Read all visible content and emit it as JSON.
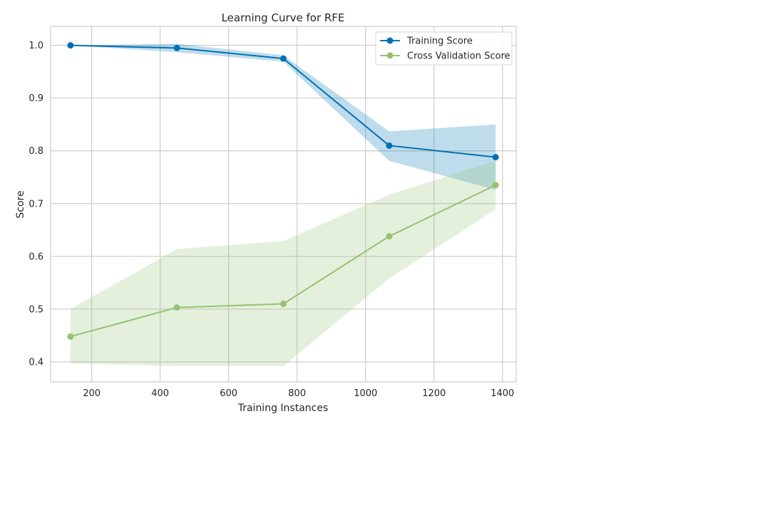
{
  "chart_data": {
    "type": "line",
    "title": "Learning Curve for RFE",
    "xlabel": "Training Instances",
    "ylabel": "Score",
    "xlim": [
      80,
      1440
    ],
    "ylim": [
      0.362,
      1.036
    ],
    "xticks": [
      200,
      400,
      600,
      800,
      1000,
      1200,
      1400
    ],
    "yticks": [
      0.4,
      0.5,
      0.6,
      0.7,
      0.8,
      0.9,
      1.0
    ],
    "xtick_labels": [
      "200",
      "400",
      "600",
      "800",
      "1000",
      "1200",
      "1400"
    ],
    "ytick_labels": [
      "0.4",
      "0.5",
      "0.6",
      "0.7",
      "0.8",
      "0.9",
      "1.0"
    ],
    "grid": true,
    "legend_position": "top-right",
    "x": [
      138,
      449,
      760,
      1069,
      1380
    ],
    "series": [
      {
        "name": "Training Score",
        "color": "#0072b2",
        "band_color": "#0072b2",
        "values": [
          1.0,
          0.995,
          0.975,
          0.81,
          0.788
        ],
        "lower": [
          1.0,
          0.987,
          0.969,
          0.781,
          0.726
        ],
        "upper": [
          1.0,
          1.003,
          0.981,
          0.837,
          0.85
        ]
      },
      {
        "name": "Cross Validation Score",
        "color": "#94c273",
        "band_color": "#94c273",
        "values": [
          0.448,
          0.503,
          0.51,
          0.638,
          0.735
        ],
        "lower": [
          0.397,
          0.392,
          0.392,
          0.558,
          0.689
        ],
        "upper": [
          0.5,
          0.614,
          0.629,
          0.717,
          0.781
        ]
      }
    ]
  }
}
